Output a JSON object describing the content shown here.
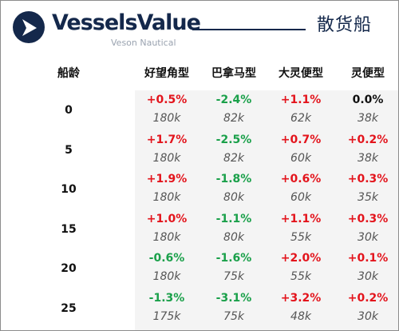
{
  "header": {
    "brand_name": "VesselsValue",
    "brand_sub": "Veson Nautical",
    "title": "散货船"
  },
  "colors": {
    "navy": "#14284b",
    "up": "#e3141c",
    "down": "#1aa04a",
    "flat": "#111111"
  },
  "table": {
    "age_header": "船龄",
    "columns": [
      "好望角型",
      "巴拿马型",
      "大灵便型",
      "灵便型"
    ],
    "rows": [
      {
        "age": "0",
        "changes": [
          "+0.5%",
          "-2.4%",
          "+1.1%",
          "0.0%"
        ],
        "prices": [
          "180k",
          "82k",
          "62k",
          "38k"
        ]
      },
      {
        "age": "5",
        "changes": [
          "+1.7%",
          "-2.5%",
          "+0.7%",
          "+0.2%"
        ],
        "prices": [
          "180k",
          "82k",
          "60k",
          "38k"
        ]
      },
      {
        "age": "10",
        "changes": [
          "+1.9%",
          "-1.8%",
          "+0.6%",
          "+0.3%"
        ],
        "prices": [
          "180k",
          "80k",
          "60k",
          "35k"
        ]
      },
      {
        "age": "15",
        "changes": [
          "+1.0%",
          "-1.1%",
          "+1.1%",
          "+0.3%"
        ],
        "prices": [
          "180k",
          "80k",
          "55k",
          "30k"
        ]
      },
      {
        "age": "20",
        "changes": [
          "-0.6%",
          "-1.6%",
          "+2.0%",
          "+0.1%"
        ],
        "prices": [
          "180k",
          "75k",
          "55k",
          "30k"
        ]
      },
      {
        "age": "25",
        "changes": [
          "-1.3%",
          "-3.1%",
          "+3.2%",
          "+0.2%"
        ],
        "prices": [
          "175k",
          "75k",
          "48k",
          "30k"
        ]
      }
    ]
  }
}
